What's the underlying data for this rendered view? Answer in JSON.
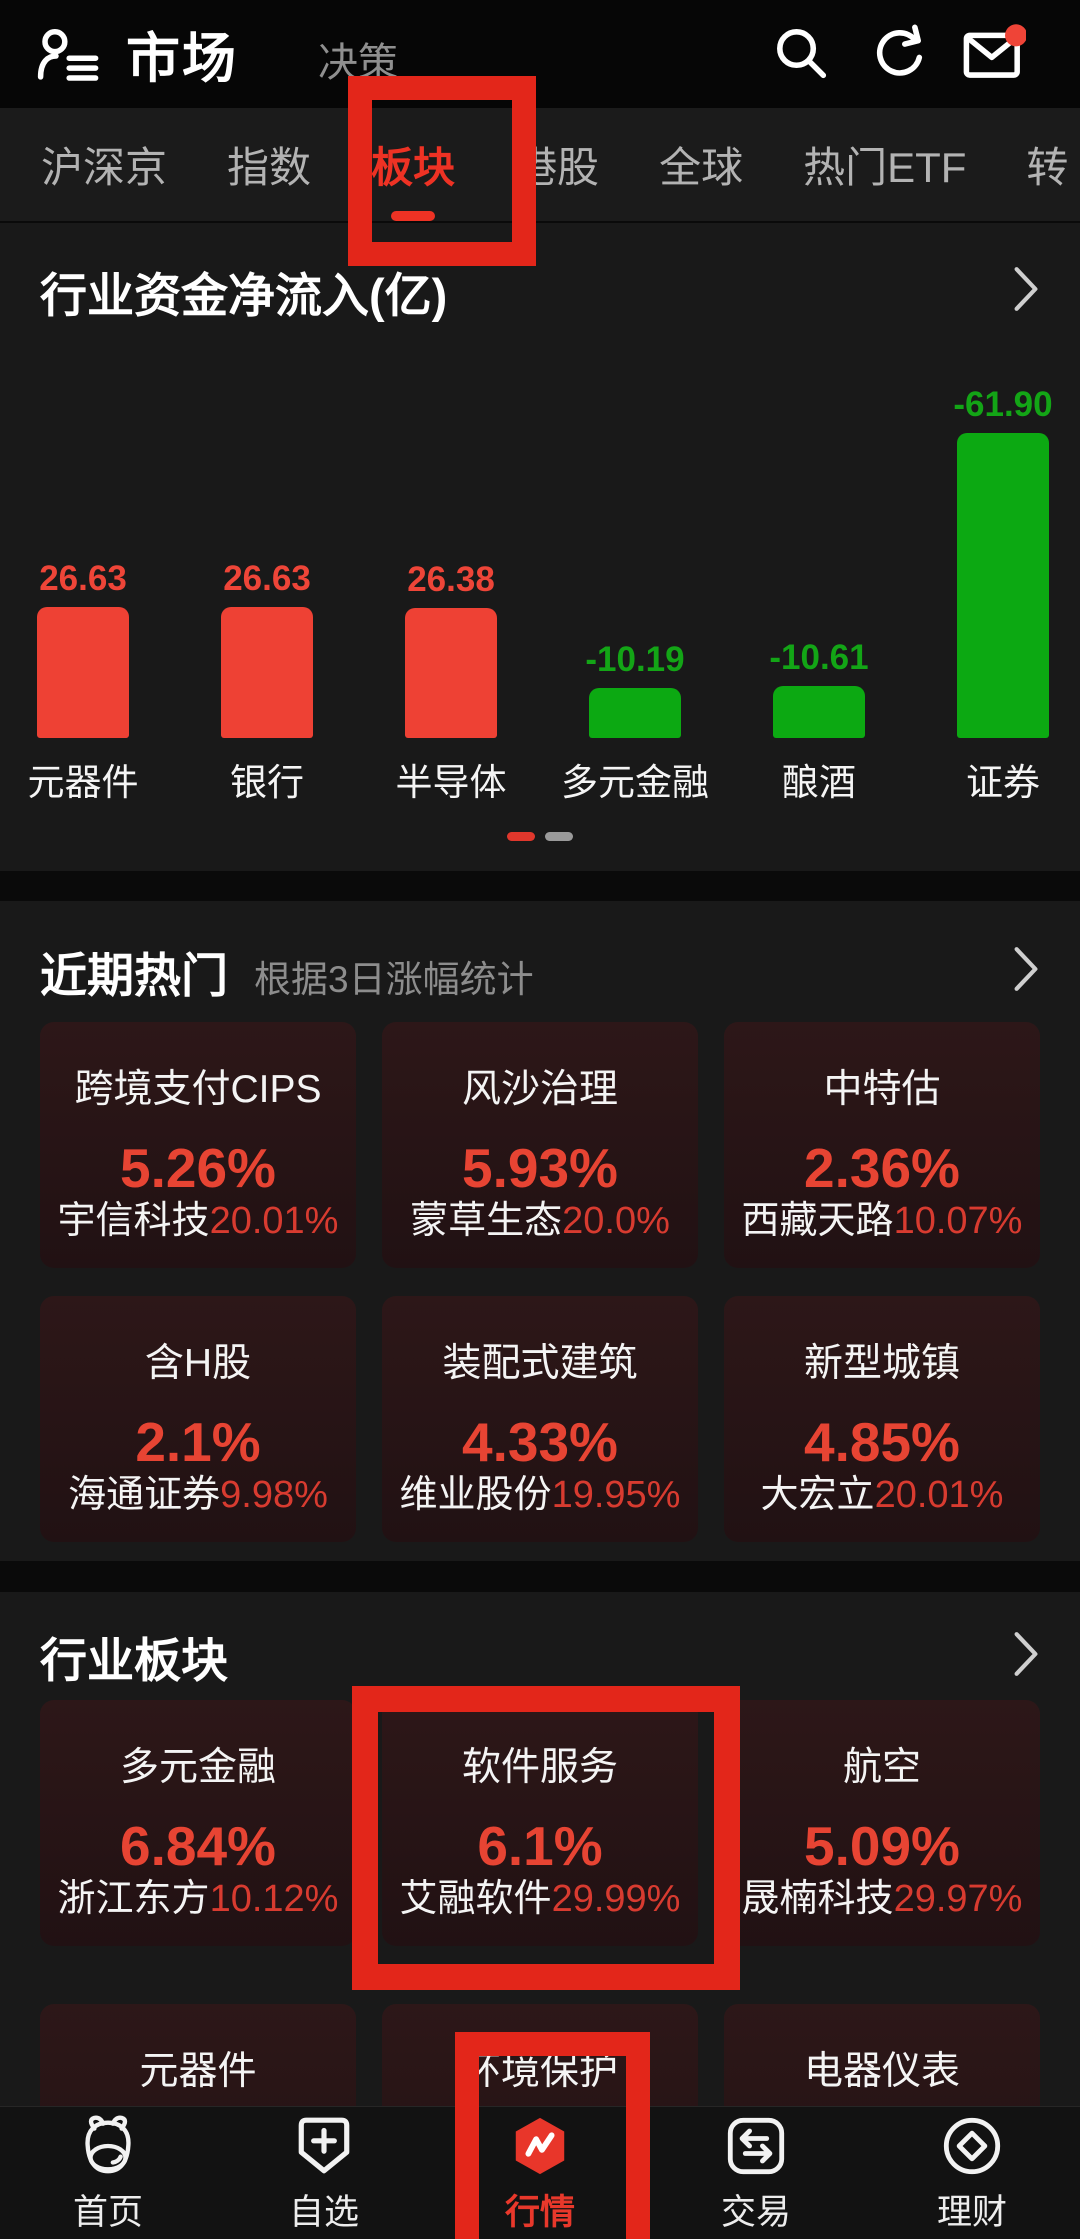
{
  "app_bar": {
    "title": "市场",
    "menu_item": "决策",
    "icons": [
      "profile-icon",
      "search-icon",
      "refresh-icon",
      "mail-icon"
    ],
    "mail_badge_color": "#ef4437"
  },
  "tab_bar": {
    "tabs": [
      "沪深京",
      "指数",
      "板块",
      "港股",
      "全球",
      "热门ETF",
      "转"
    ],
    "active": "板块",
    "active_color": "#ee3224"
  },
  "fund_flow_section": {
    "title": "行业资金净流入(亿)"
  },
  "chart_data": {
    "type": "bar",
    "title": "行业资金净流入(亿)",
    "categories": [
      "元器件",
      "银行",
      "半导体",
      "多元金融",
      "酿酒",
      "证券"
    ],
    "values": [
      26.63,
      26.63,
      26.38,
      -10.19,
      -10.61,
      -61.9
    ],
    "value_labels": [
      "26.63",
      "26.63",
      "26.38",
      "-10.19",
      "-10.61",
      "-61.90"
    ],
    "bar_rule": "bar height = |value|; red = positive inflow, green = negative outflow",
    "positive_color": "#ee4134",
    "negative_color": "#0ca912",
    "xlabel": "",
    "ylabel": "净流入(亿)",
    "grid": false,
    "pagination": {
      "pages": 2,
      "active_page": 1
    }
  },
  "hot_section": {
    "title": "近期热门",
    "subtitle": "根据3日涨幅统计",
    "cards": [
      {
        "name": "跨境支付CIPS",
        "pct": "5.26%",
        "stock": "宇信科技",
        "stock_pct": "20.01%"
      },
      {
        "name": "风沙治理",
        "pct": "5.93%",
        "stock": "蒙草生态",
        "stock_pct": "20.0%"
      },
      {
        "name": "中特估",
        "pct": "2.36%",
        "stock": "西藏天路",
        "stock_pct": "10.07%"
      },
      {
        "name": "含H股",
        "pct": "2.1%",
        "stock": "海通证券",
        "stock_pct": "9.98%"
      },
      {
        "name": "装配式建筑",
        "pct": "4.33%",
        "stock": "维业股份",
        "stock_pct": "19.95%"
      },
      {
        "name": "新型城镇",
        "pct": "4.85%",
        "stock": "大宏立",
        "stock_pct": "20.01%"
      }
    ]
  },
  "industry_section": {
    "title": "行业板块",
    "cards": [
      {
        "name": "多元金融",
        "pct": "6.84%",
        "stock": "浙江东方",
        "stock_pct": "10.12%"
      },
      {
        "name": "软件服务",
        "pct": "6.1%",
        "stock": "艾融软件",
        "stock_pct": "29.99%",
        "highlighted": true
      },
      {
        "name": "航空",
        "pct": "5.09%",
        "stock": "晟楠科技",
        "stock_pct": "29.97%"
      }
    ],
    "partial_cards": [
      "元器件",
      "环境保护",
      "电器仪表"
    ]
  },
  "bottom_nav": {
    "items": [
      {
        "label": "首页",
        "icon": "home-bull-icon",
        "active": false
      },
      {
        "label": "自选",
        "icon": "watchlist-add-icon",
        "active": false
      },
      {
        "label": "行情",
        "icon": "quotes-icon",
        "active": true
      },
      {
        "label": "交易",
        "icon": "trade-icon",
        "active": false
      },
      {
        "label": "理财",
        "icon": "wealth-icon",
        "active": false
      }
    ],
    "active_color": "#e8382b"
  },
  "annotations": {
    "color": "#e3261a",
    "boxes": [
      "tab-板块",
      "card-软件服务",
      "nav-行情"
    ]
  },
  "colors": {
    "up_red": "#ee4134",
    "down_green": "#0ca912",
    "pct_red": "#e74433",
    "section_bg": "#191919",
    "page_bg": "#0a0a0a"
  }
}
